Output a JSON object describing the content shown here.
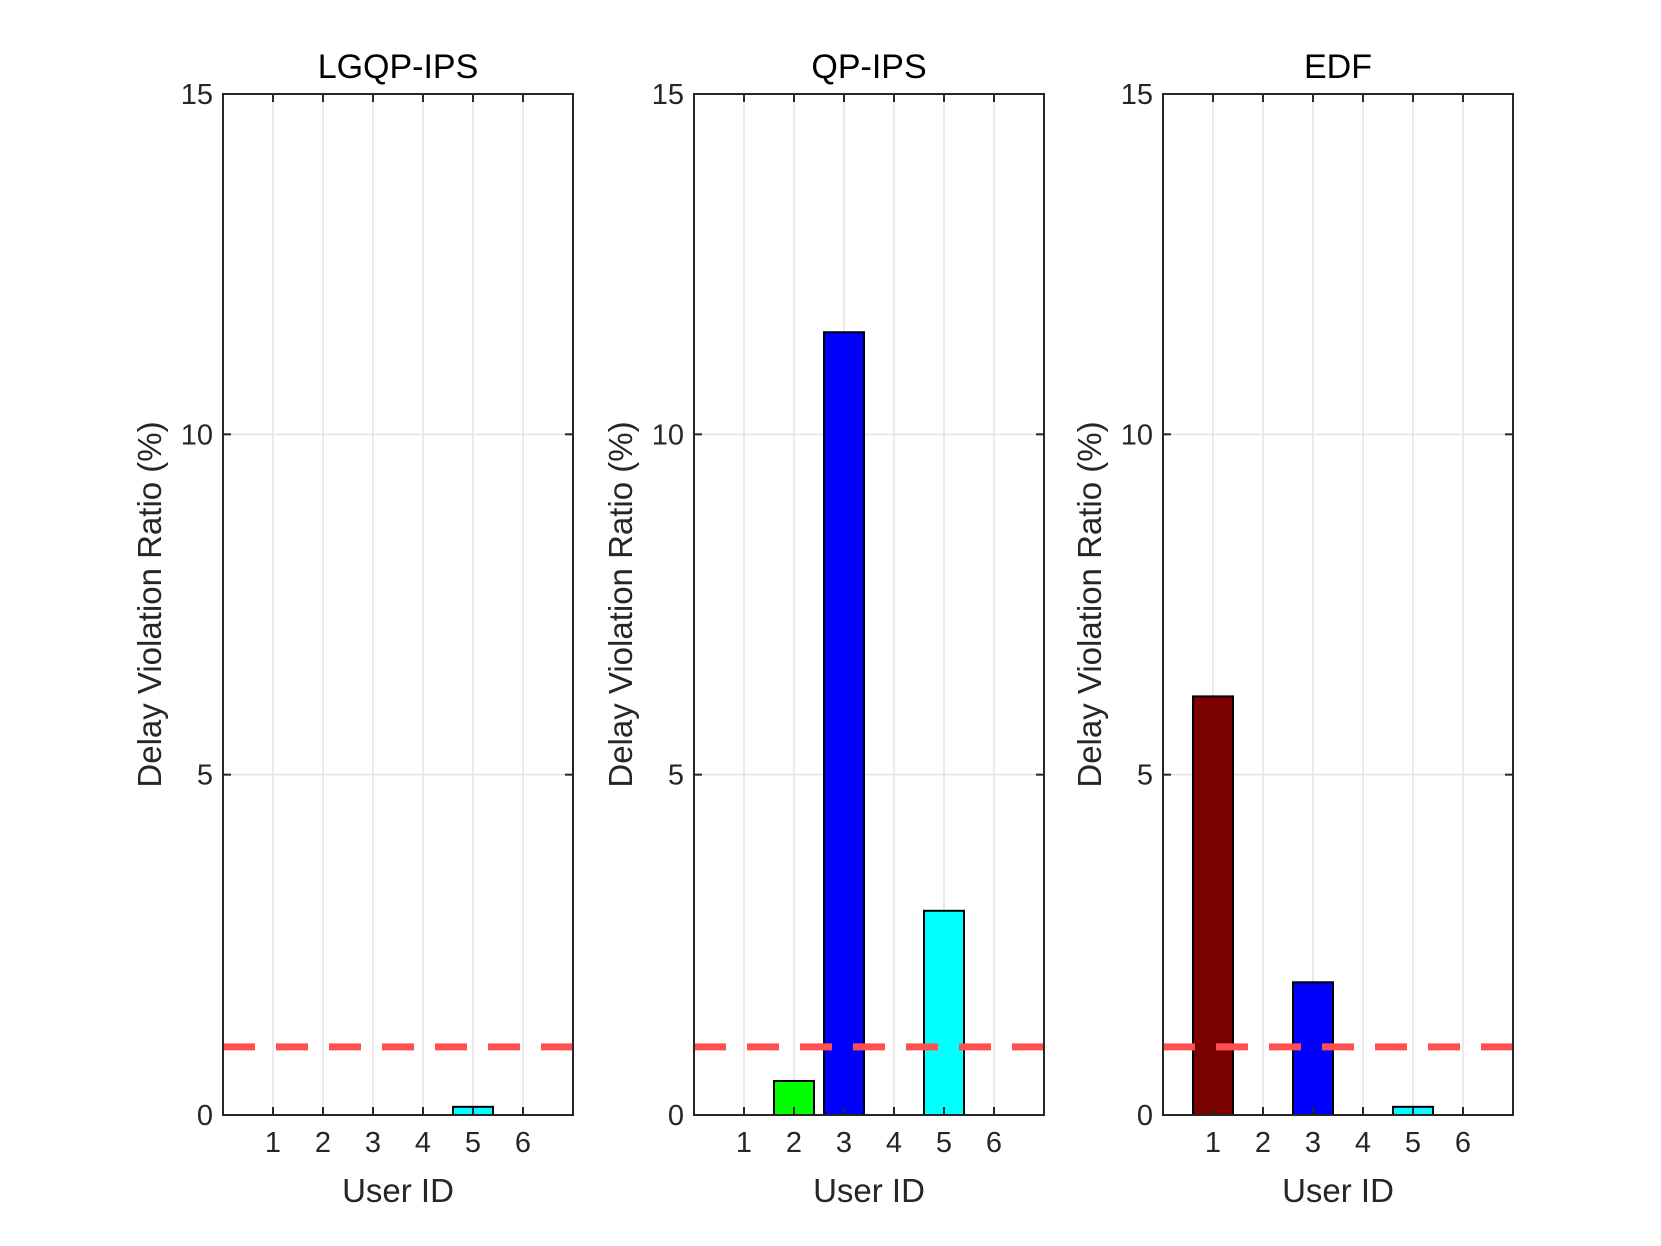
{
  "chart_data": [
    {
      "type": "bar",
      "title": "LGQP-IPS",
      "xlabel": "User ID",
      "ylabel": "Delay Violation Ratio (%)",
      "categories": [
        1,
        2,
        3,
        4,
        5,
        6
      ],
      "values": [
        0,
        0,
        0,
        0,
        0.12,
        0
      ],
      "colors": [
        "#7b0000",
        "#00ff00",
        "#0000ff",
        "#ffff00",
        "#00ffff",
        "#ff00ff"
      ],
      "ylim": [
        0,
        15
      ],
      "yticks": [
        0,
        5,
        10,
        15
      ],
      "xlim": [
        0,
        7
      ],
      "threshold": 1,
      "threshold_color": "#ff5050",
      "grid": true
    },
    {
      "type": "bar",
      "title": "QP-IPS",
      "xlabel": "User ID",
      "ylabel": "Delay Violation Ratio (%)",
      "categories": [
        1,
        2,
        3,
        4,
        5,
        6
      ],
      "values": [
        0,
        0.5,
        11.5,
        0,
        3.0,
        0
      ],
      "colors": [
        "#7b0000",
        "#00ff00",
        "#0000ff",
        "#ffff00",
        "#00ffff",
        "#ff00ff"
      ],
      "ylim": [
        0,
        15
      ],
      "yticks": [
        0,
        5,
        10,
        15
      ],
      "xlim": [
        0,
        7
      ],
      "threshold": 1,
      "threshold_color": "#ff5050",
      "grid": true
    },
    {
      "type": "bar",
      "title": "EDF",
      "xlabel": "User ID",
      "ylabel": "Delay Violation Ratio (%)",
      "categories": [
        1,
        2,
        3,
        4,
        5,
        6
      ],
      "values": [
        6.15,
        0,
        1.95,
        0,
        0.12,
        0
      ],
      "colors": [
        "#7b0000",
        "#00ff00",
        "#0000ff",
        "#ffff00",
        "#00ffff",
        "#ff00ff"
      ],
      "ylim": [
        0,
        15
      ],
      "yticks": [
        0,
        5,
        10,
        15
      ],
      "xlim": [
        0,
        7
      ],
      "threshold": 1,
      "threshold_color": "#ff5050",
      "grid": true
    }
  ]
}
